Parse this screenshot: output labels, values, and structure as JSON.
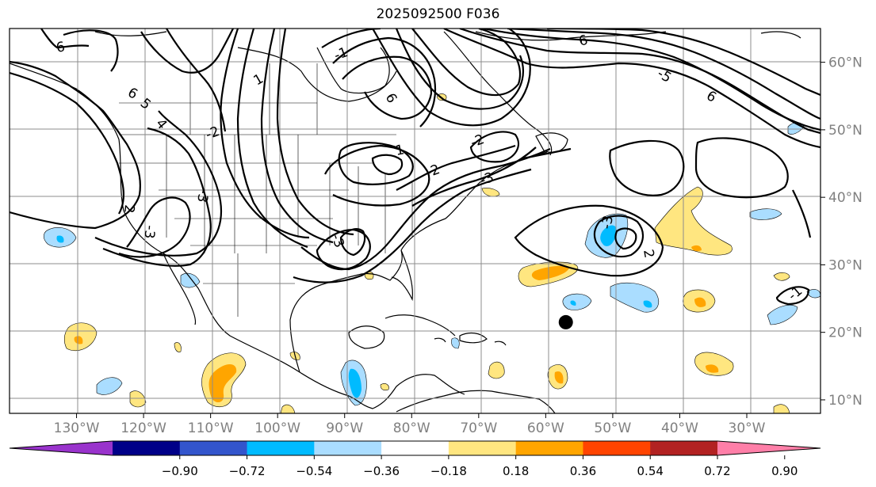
{
  "title": "2025092500 F036",
  "map": {
    "lon_range": [
      -140,
      -19
    ],
    "lat_range": [
      8,
      65
    ],
    "lon_ticks": [
      "130°W",
      "120°W",
      "110°W",
      "100°W",
      "90°W",
      "80°W",
      "70°W",
      "60°W",
      "50°W",
      "40°W",
      "30°W"
    ],
    "lat_ticks": [
      "60°N",
      "50°N",
      "40°N",
      "30°N",
      "20°N",
      "10°N"
    ],
    "contour_labels": [
      "6",
      "6",
      "5",
      "4",
      "2",
      "-3",
      "1",
      "1",
      "-3",
      "-2",
      "-3",
      "-2",
      "6",
      "6",
      "-5",
      "6",
      "-3",
      "-1",
      "2",
      "-3",
      "-2",
      "-1"
    ],
    "marker": {
      "lon": -57,
      "lat": 21.5
    },
    "grid": true
  },
  "colorbar": {
    "ticks": [
      "−0.90",
      "−0.72",
      "−0.54",
      "−0.36",
      "−0.18",
      "0.18",
      "0.36",
      "0.54",
      "0.72",
      "0.90"
    ],
    "colors": [
      "#9933cc",
      "#000088",
      "#3355cc",
      "#00bbff",
      "#aaddff",
      "#ffffff",
      "#ffe680",
      "#ffa500",
      "#ff4400",
      "#b22222",
      "#ff7fa8"
    ]
  }
}
